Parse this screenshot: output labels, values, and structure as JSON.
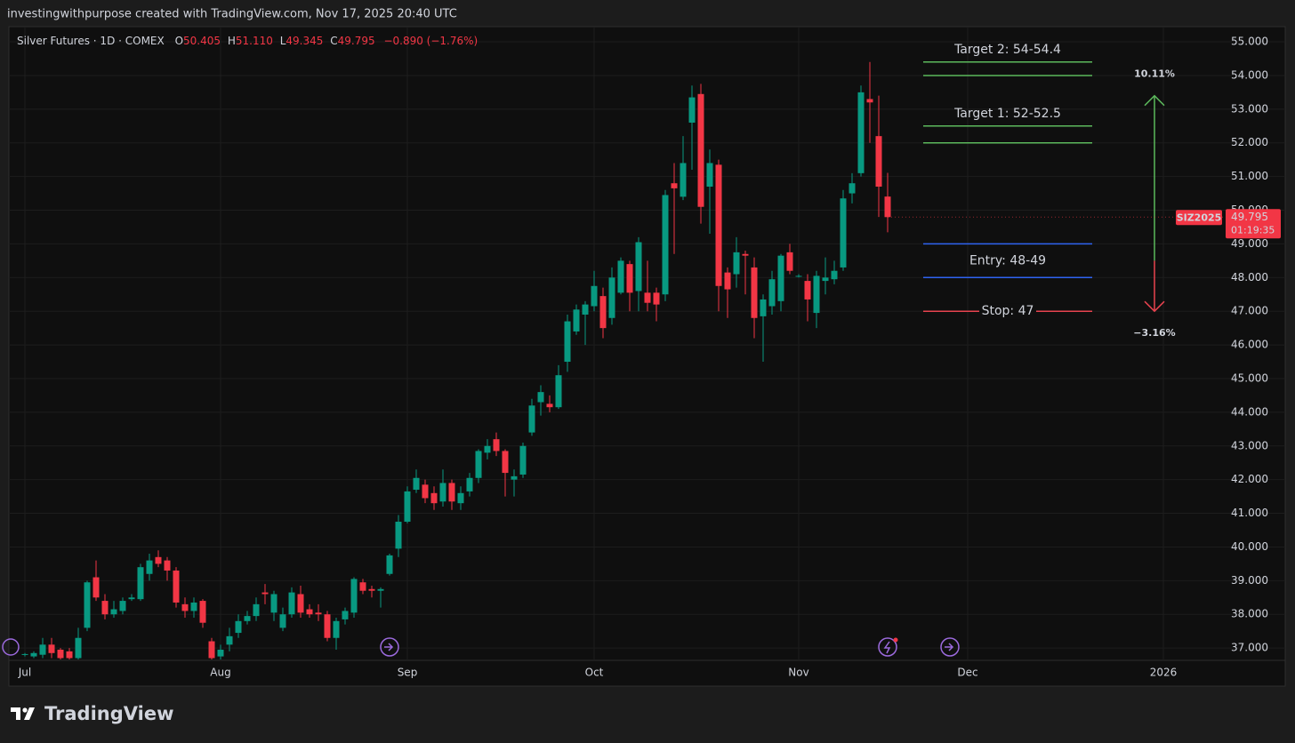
{
  "chart_data": {
    "type": "candlestick",
    "attribution": "investingwithpurpose created with TradingView.com, Nov 17, 2025 20:40 UTC",
    "title": "Silver Futures · 1D · COMEX",
    "ohlc_header": [
      {
        "label": "O",
        "value": "50.405"
      },
      {
        "label": "H",
        "value": "51.110"
      },
      {
        "label": "L",
        "value": "49.345"
      },
      {
        "label": "C",
        "value": "49.795"
      }
    ],
    "change": "−0.890 (−1.76%)",
    "symbol": "SIZ2025",
    "countdown": "01:19:35",
    "brand": "TradingView",
    "up_color": "#089981",
    "down_color": "#f23645",
    "grid": true,
    "categories": [
      null,
      null,
      null,
      null,
      null,
      null,
      null,
      null,
      null,
      null,
      null,
      null,
      null,
      null,
      null,
      null,
      null,
      null,
      null,
      null,
      null,
      null,
      null,
      null,
      null,
      null,
      null,
      null,
      null,
      null,
      null,
      null,
      null,
      null,
      null,
      null,
      null,
      null,
      null,
      null,
      null,
      null,
      null,
      null,
      null,
      null,
      null,
      null,
      null,
      null,
      null,
      null,
      null,
      null,
      null,
      null,
      null,
      null,
      null,
      null,
      null,
      null,
      null,
      null,
      null,
      null,
      null,
      null,
      null,
      null,
      null,
      null,
      null,
      null,
      null,
      null,
      null,
      null,
      null,
      null,
      null,
      null,
      null,
      null,
      null,
      null,
      null,
      null,
      null,
      null,
      null,
      null,
      null,
      null,
      null,
      null,
      null,
      null
    ],
    "open": [
      36.8,
      36.75,
      36.8,
      37.1,
      36.95,
      36.9,
      36.7,
      37.6,
      39.1,
      38.4,
      38.0,
      38.1,
      38.45,
      38.45,
      39.2,
      39.7,
      39.6,
      39.3,
      38.3,
      38.1,
      38.4,
      37.2,
      36.75,
      37.1,
      37.45,
      37.8,
      37.95,
      38.65,
      38.05,
      37.6,
      38.0,
      38.6,
      38.15,
      38.05,
      38.0,
      37.3,
      37.85,
      38.05,
      38.95,
      38.75,
      38.7,
      39.2,
      39.95,
      40.75,
      41.7,
      41.85,
      41.6,
      41.35,
      41.9,
      41.3,
      41.65,
      42.05,
      42.8,
      43.2,
      42.85,
      42.0,
      42.15,
      43.4,
      44.3,
      44.25,
      44.15,
      45.5,
      46.4,
      46.9,
      47.15,
      47.45,
      46.8,
      47.55,
      48.4,
      47.6,
      47.55,
      47.55,
      47.5,
      50.8,
      50.4,
      52.6,
      53.45,
      50.7,
      51.35,
      48.15,
      48.1,
      48.7,
      48.3,
      46.85,
      47.15,
      47.3,
      48.75,
      48.05,
      47.9,
      46.95,
      47.9,
      47.95,
      48.3,
      50.5,
      51.1,
      53.3,
      52.2,
      50.405
    ],
    "high": [
      36.85,
      36.9,
      37.3,
      37.3,
      37.0,
      37.0,
      37.6,
      39.0,
      39.6,
      38.6,
      38.4,
      38.5,
      38.6,
      39.5,
      39.8,
      39.9,
      39.7,
      39.4,
      38.5,
      38.5,
      38.45,
      37.3,
      37.1,
      37.6,
      38.0,
      38.1,
      38.5,
      38.9,
      38.7,
      38.2,
      38.8,
      38.85,
      38.3,
      38.3,
      38.1,
      37.9,
      38.2,
      39.1,
      39.05,
      38.85,
      38.8,
      39.8,
      40.95,
      41.8,
      42.3,
      42.0,
      41.8,
      42.3,
      42.0,
      41.8,
      42.2,
      42.9,
      43.2,
      43.4,
      42.9,
      42.3,
      43.1,
      44.4,
      44.8,
      44.5,
      45.4,
      46.9,
      47.2,
      47.3,
      48.2,
      47.7,
      48.3,
      48.6,
      48.5,
      49.2,
      48.5,
      47.7,
      50.6,
      51.4,
      52.2,
      53.7,
      53.75,
      51.8,
      51.5,
      48.3,
      49.2,
      48.8,
      48.6,
      47.5,
      48.2,
      48.7,
      49.0,
      48.1,
      48.1,
      48.2,
      48.6,
      48.5,
      50.6,
      51.1,
      53.7,
      54.4,
      53.4,
      51.11
    ],
    "low": [
      36.75,
      36.7,
      36.7,
      36.7,
      36.66,
      36.66,
      36.66,
      37.5,
      38.4,
      37.85,
      37.9,
      38.0,
      38.4,
      38.4,
      39.0,
      39.4,
      39.0,
      38.2,
      37.9,
      37.9,
      37.6,
      36.66,
      36.66,
      36.9,
      37.3,
      37.7,
      37.8,
      38.3,
      37.8,
      37.5,
      37.9,
      37.9,
      37.9,
      37.8,
      37.2,
      36.95,
      37.7,
      37.9,
      38.6,
      38.5,
      38.2,
      39.15,
      39.7,
      40.7,
      41.6,
      41.3,
      41.1,
      41.2,
      41.1,
      41.1,
      41.5,
      41.9,
      42.6,
      42.7,
      41.5,
      41.5,
      42.05,
      43.3,
      43.9,
      44.0,
      44.1,
      45.2,
      46.3,
      46.0,
      47.0,
      46.2,
      46.6,
      47.5,
      47.0,
      47.0,
      47.0,
      46.7,
      47.3,
      48.7,
      50.3,
      51.2,
      49.6,
      49.3,
      47.0,
      46.8,
      47.7,
      47.5,
      46.2,
      45.5,
      46.9,
      47.0,
      48.1,
      48.0,
      46.7,
      46.5,
      47.5,
      47.8,
      48.2,
      50.2,
      51.0,
      52.0,
      49.8,
      49.345
    ],
    "close": [
      36.82,
      36.85,
      37.1,
      36.85,
      36.7,
      36.7,
      37.3,
      38.95,
      38.5,
      38.0,
      38.15,
      38.4,
      38.5,
      39.4,
      39.6,
      39.5,
      39.3,
      38.35,
      38.1,
      38.35,
      37.75,
      36.7,
      36.95,
      37.35,
      37.8,
      37.95,
      38.3,
      38.6,
      38.6,
      38.0,
      38.65,
      38.05,
      38.0,
      38.0,
      37.3,
      37.8,
      38.1,
      39.05,
      38.7,
      38.7,
      38.75,
      39.75,
      40.75,
      41.65,
      42.05,
      41.45,
      41.3,
      41.9,
      41.35,
      41.6,
      42.05,
      42.85,
      43.0,
      42.85,
      42.2,
      42.1,
      43.0,
      44.2,
      44.6,
      44.15,
      45.1,
      46.7,
      47.05,
      47.2,
      47.75,
      46.5,
      48.0,
      48.5,
      47.55,
      49.05,
      47.25,
      47.2,
      50.45,
      50.65,
      51.4,
      53.35,
      50.1,
      51.4,
      47.75,
      47.65,
      48.75,
      48.65,
      46.8,
      47.35,
      47.95,
      48.65,
      48.2,
      48.05,
      47.35,
      48.05,
      48.0,
      48.2,
      50.35,
      50.8,
      53.5,
      53.2,
      50.7,
      49.795
    ],
    "xlim": [
      -1.8,
      134
    ],
    "xticks": [
      {
        "value": 0,
        "label": "Jul"
      },
      {
        "value": 22,
        "label": "Aug"
      },
      {
        "value": 43,
        "label": "Sep"
      },
      {
        "value": 64,
        "label": "Oct"
      },
      {
        "value": 87,
        "label": "Nov"
      },
      {
        "value": 106,
        "label": "Dec"
      },
      {
        "value": 128,
        "label": "2026"
      }
    ],
    "ylim": [
      36.66,
      55.45
    ],
    "yticks": [
      {
        "value": 37,
        "label": "37.000"
      },
      {
        "value": 38,
        "label": "38.000"
      },
      {
        "value": 39,
        "label": "39.000"
      },
      {
        "value": 40,
        "label": "40.000"
      },
      {
        "value": 41,
        "label": "41.000"
      },
      {
        "value": 42,
        "label": "42.000"
      },
      {
        "value": 43,
        "label": "43.000"
      },
      {
        "value": 44,
        "label": "44.000"
      },
      {
        "value": 45,
        "label": "45.000"
      },
      {
        "value": 46,
        "label": "46.000"
      },
      {
        "value": 47,
        "label": "47.000"
      },
      {
        "value": 48,
        "label": "48.000"
      },
      {
        "value": 49,
        "label": "49.000"
      },
      {
        "value": 50,
        "label": "50.000"
      },
      {
        "value": 51,
        "label": "51.000"
      },
      {
        "value": 52,
        "label": "52.000"
      },
      {
        "value": 53,
        "label": "53.000"
      },
      {
        "value": 54,
        "label": "54.000"
      },
      {
        "value": 55,
        "label": "55.000"
      }
    ],
    "zones": [
      {
        "label": "Target 2: 54-54.4",
        "from": 54,
        "to": 54.4,
        "color": "#5cb85c",
        "label_position": "above"
      },
      {
        "label": "Target 1: 52-52.5",
        "from": 52,
        "to": 52.5,
        "color": "#5cb85c",
        "label_position": "above"
      },
      {
        "label": "Entry: 48-49",
        "from": 48,
        "to": 49,
        "color": "#2f63f0",
        "label_position": "between"
      },
      {
        "label": "Stop: 47",
        "from": 47,
        "to": 47,
        "color": "#e8434f",
        "label_position": "inline"
      }
    ],
    "zone_x": [
      101,
      120
    ],
    "projection": {
      "x": 127,
      "base": 48.5,
      "target": 53.4,
      "stop": 47,
      "up_label": "10.11%",
      "down_label": "−3.16%",
      "up_color": "#5cb85c",
      "down_color": "#e8434f"
    }
  }
}
